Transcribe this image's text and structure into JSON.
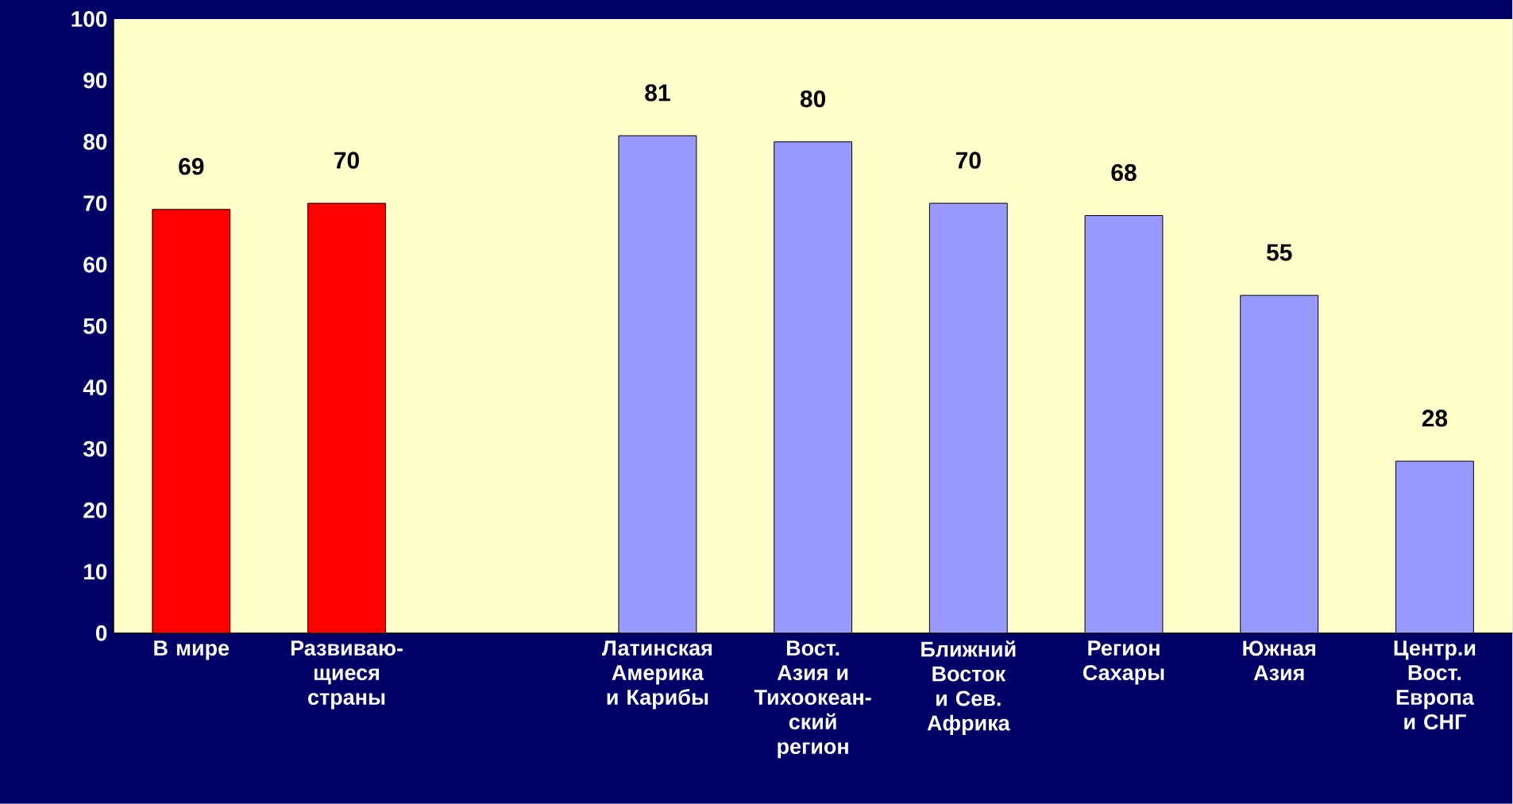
{
  "chart_data": {
    "type": "bar",
    "categories": [
      "В мире",
      "Развиваю-щиеся страны",
      null,
      "Латинская Америка и Карибы",
      "Вост. Азия и Тихоокеан-ский регион",
      "Ближний Восток и Сев. Африка",
      "Регион Сахары",
      "Южная Азия",
      "Центр.и Вост. Европа и СНГ"
    ],
    "values": [
      69,
      70,
      null,
      81,
      80,
      70,
      68,
      55,
      28
    ],
    "colors": [
      "#ff0000",
      "#ff0000",
      null,
      "#9999ff",
      "#9999ff",
      "#9999ff",
      "#9999ff",
      "#9999ff",
      "#9999ff"
    ],
    "ylim": [
      0,
      100
    ],
    "yticks": [
      0,
      10,
      20,
      30,
      40,
      50,
      60,
      70,
      80,
      90,
      100
    ],
    "data_labels": true,
    "grid": false
  }
}
